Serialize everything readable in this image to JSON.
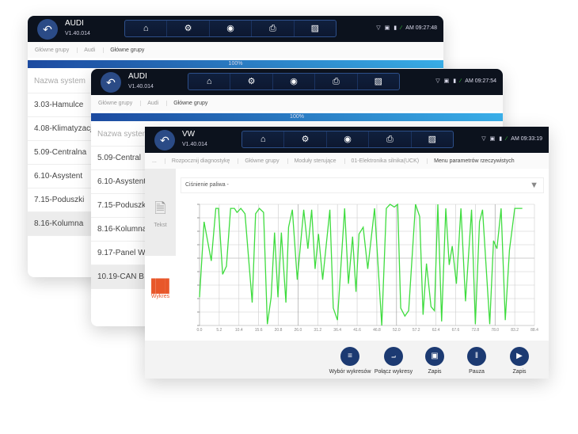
{
  "icons": {
    "back": "back-arrow-icon",
    "home": "home-icon",
    "settings": "gear-icon",
    "record": "record-icon",
    "print": "printer-icon",
    "screenshot": "image-icon"
  },
  "colors": {
    "header": "#0c121d",
    "accent": "#1c3a72",
    "line": "#3fdc3f",
    "highlight": "#e8572a"
  },
  "panel1": {
    "brand": "AUDI",
    "version": "V1.40.014",
    "time": "AM 09:27:48",
    "crumbs": [
      "Główne grupy",
      "Audi",
      "Główne grupy"
    ],
    "progress": "100%",
    "list": [
      "Nazwa system",
      "3.03-Hamulce",
      "4.08-Klimatyzacja",
      "5.09-Centralna",
      "6.10-Asystent",
      "7.15-Poduszki",
      "8.16-Kolumna"
    ]
  },
  "panel2": {
    "brand": "AUDI",
    "version": "V1.40.014",
    "time": "AM 09:27:54",
    "crumbs": [
      "Główne grupy",
      "Audi",
      "Główne grupy"
    ],
    "progress": "100%",
    "list": [
      "Nazwa system",
      "5.09-Central",
      "6.10-Asystent",
      "7.15-Poduszki",
      "8.16-Kolumna",
      "9.17-Panel W",
      "10.19-CAN B"
    ]
  },
  "panel3": {
    "brand": "VW",
    "version": "V1.40.014",
    "time": "AM 09:33:19",
    "crumbs": [
      "...",
      "Rozpocznij diagnostykę",
      "Główne grupy",
      "Moduły sterujące",
      "01-Elektronika silnika(UCK)",
      "Menu parametrów rzeczywistych"
    ],
    "tabs": {
      "text": "Tekst",
      "chart": "Wykres"
    },
    "dropdown": "Ciśnienie paliwa -",
    "buttons": [
      "Wybór wykresów",
      "Połącz wykresy",
      "Zapis",
      "Pauza",
      "Zapis"
    ]
  },
  "chart_data": {
    "type": "line",
    "xlim": [
      0,
      88.4
    ],
    "ylim": [
      0,
      9
    ],
    "grid": true,
    "x_ticks": [
      "0.0",
      "5.2",
      "10.4",
      "15.6",
      "20.8",
      "26.0",
      "31.2",
      "36.4",
      "41.6",
      "46.8",
      "52.0",
      "57.2",
      "62.4",
      "67.6",
      "72.8",
      "78.0",
      "83.2",
      "88.4"
    ],
    "points": [
      [
        0,
        2.1
      ],
      [
        1.2,
        7.7
      ],
      [
        3.1,
        4.8
      ],
      [
        4.3,
        8.7
      ],
      [
        5.0,
        8.7
      ],
      [
        6.1,
        3.8
      ],
      [
        7.1,
        4.4
      ],
      [
        8.2,
        8.7
      ],
      [
        9.2,
        8.7
      ],
      [
        9.9,
        8.4
      ],
      [
        10.9,
        8.7
      ],
      [
        12.0,
        8.3
      ],
      [
        13.9,
        1.7
      ],
      [
        14.8,
        8.3
      ],
      [
        15.8,
        8.7
      ],
      [
        16.9,
        8.4
      ],
      [
        17.9,
        0.1
      ],
      [
        18.9,
        2.1
      ],
      [
        19.8,
        6.9
      ],
      [
        20.7,
        2.1
      ],
      [
        21.6,
        6.9
      ],
      [
        22.8,
        1.7
      ],
      [
        23.5,
        7.3
      ],
      [
        24.5,
        8.6
      ],
      [
        25.8,
        3.4
      ],
      [
        27.5,
        8.6
      ],
      [
        28.6,
        5.7
      ],
      [
        29.6,
        8.6
      ],
      [
        30.5,
        4.2
      ],
      [
        31.4,
        6.8
      ],
      [
        32.5,
        3.4
      ],
      [
        34.4,
        8.6
      ],
      [
        35.3,
        1.3
      ],
      [
        36.4,
        0.4
      ],
      [
        38.3,
        8.7
      ],
      [
        39.3,
        3.1
      ],
      [
        40.4,
        6.6
      ],
      [
        41.3,
        2.5
      ],
      [
        42.1,
        6.8
      ],
      [
        43.2,
        7.3
      ],
      [
        44.4,
        4.2
      ],
      [
        46.2,
        8.7
      ],
      [
        48.1,
        0.0
      ],
      [
        49.3,
        8.7
      ],
      [
        50.3,
        9.0
      ],
      [
        51.4,
        8.8
      ],
      [
        52.3,
        9.0
      ],
      [
        53.1,
        1.3
      ],
      [
        54.2,
        0.7
      ],
      [
        55.2,
        1.1
      ],
      [
        57.0,
        9.0
      ],
      [
        58.1,
        8.1
      ],
      [
        59.0,
        0.8
      ],
      [
        59.9,
        4.6
      ],
      [
        61.1,
        1.4
      ],
      [
        62.0,
        1.1
      ],
      [
        62.9,
        9.0
      ],
      [
        63.9,
        0.3
      ],
      [
        65.0,
        8.7
      ],
      [
        65.9,
        4.5
      ],
      [
        66.7,
        5.9
      ],
      [
        67.8,
        3.1
      ],
      [
        69.0,
        8.7
      ],
      [
        70.2,
        1.8
      ],
      [
        71.8,
        8.6
      ],
      [
        72.8,
        0.1
      ],
      [
        73.9,
        7.7
      ],
      [
        74.7,
        8.6
      ],
      [
        76.6,
        0.1
      ],
      [
        77.6,
        6.3
      ],
      [
        78.5,
        5.7
      ],
      [
        79.6,
        8.7
      ],
      [
        80.7,
        0.4
      ],
      [
        81.8,
        5.6
      ],
      [
        83.2,
        8.7
      ],
      [
        85.2,
        8.7
      ]
    ]
  }
}
